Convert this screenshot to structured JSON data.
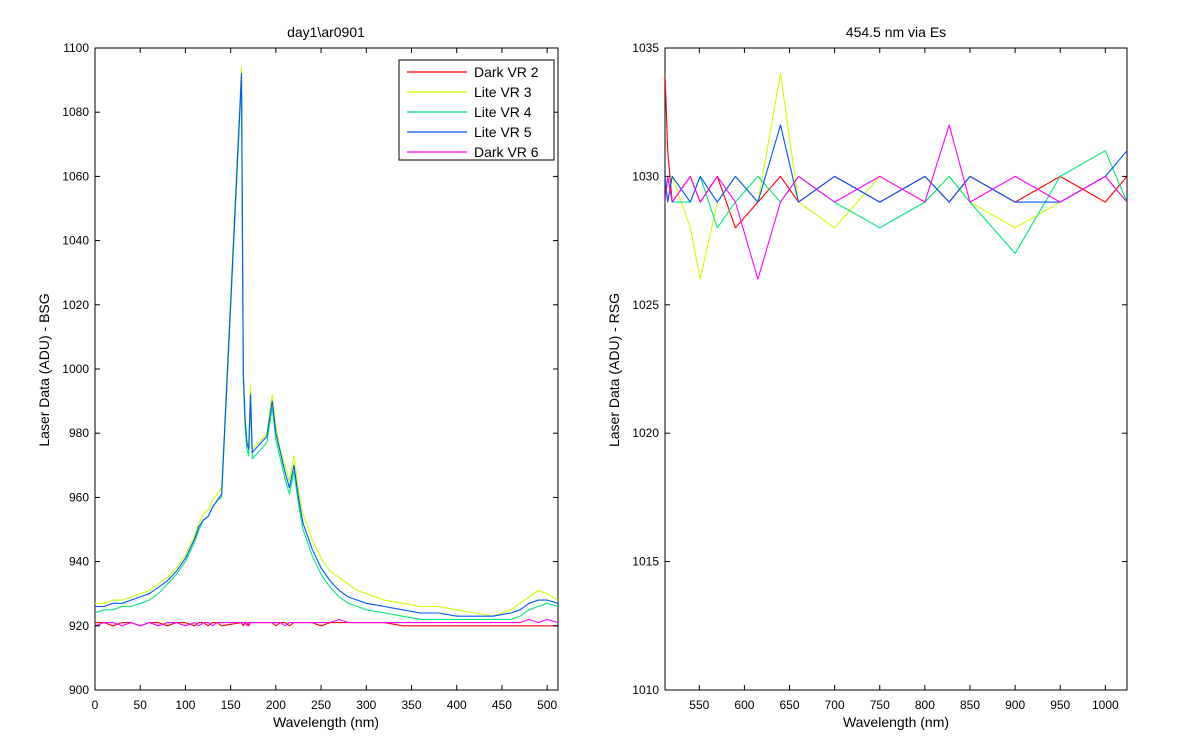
{
  "chart_data": [
    {
      "type": "line",
      "title": "day1\\ar0901",
      "xlabel": "Wavelength (nm)",
      "ylabel": "Laser Data (ADU) - BSG",
      "xlim": [
        0,
        512
      ],
      "ylim": [
        900,
        1100
      ],
      "xticks": [
        0,
        50,
        100,
        150,
        200,
        250,
        300,
        350,
        400,
        450,
        500
      ],
      "yticks": [
        900,
        920,
        940,
        960,
        980,
        1000,
        1020,
        1040,
        1060,
        1080,
        1100
      ],
      "legend_position": "top-right",
      "grid": false,
      "x": [
        0,
        10,
        20,
        30,
        40,
        50,
        60,
        70,
        80,
        90,
        100,
        110,
        115,
        120,
        125,
        130,
        135,
        140,
        162,
        164,
        166,
        168,
        170,
        172,
        174,
        190,
        196,
        200,
        205,
        210,
        215,
        220,
        225,
        230,
        240,
        250,
        260,
        270,
        280,
        290,
        300,
        320,
        340,
        360,
        380,
        400,
        420,
        440,
        460,
        470,
        480,
        490,
        500,
        512
      ],
      "series": [
        {
          "name": "Dark VR 2",
          "color": "#ff0000",
          "values": [
            921,
            921,
            920,
            921,
            921,
            920,
            921,
            921,
            920,
            921,
            921,
            920,
            921,
            921,
            920,
            921,
            921,
            920,
            921,
            920,
            921,
            921,
            920,
            921,
            921,
            921,
            921,
            920,
            921,
            921,
            920,
            921,
            921,
            921,
            921,
            920,
            921,
            921,
            921,
            921,
            921,
            921,
            920,
            920,
            920,
            920,
            920,
            920,
            920,
            920,
            920,
            920,
            920,
            920
          ]
        },
        {
          "name": "Lite VR 3",
          "color": "#ccff00",
          "values": [
            927,
            927,
            928,
            928,
            929,
            930,
            931,
            933,
            935,
            938,
            942,
            948,
            952,
            955,
            956,
            959,
            961,
            963,
            1094,
            1000,
            985,
            978,
            976,
            995,
            975,
            980,
            992,
            982,
            975,
            970,
            965,
            973,
            962,
            955,
            947,
            941,
            937,
            935,
            933,
            931,
            930,
            928,
            927,
            926,
            926,
            925,
            924,
            923,
            925,
            927,
            929,
            931,
            930,
            928
          ]
        },
        {
          "name": "Lite VR 4",
          "color": "#00e87a",
          "values": [
            924,
            925,
            925,
            926,
            926,
            927,
            928,
            930,
            933,
            936,
            940,
            946,
            950,
            953,
            954,
            957,
            959,
            960,
            1090,
            997,
            982,
            975,
            973,
            990,
            972,
            977,
            988,
            978,
            972,
            966,
            961,
            968,
            958,
            950,
            942,
            936,
            932,
            929,
            927,
            926,
            925,
            924,
            923,
            922,
            922,
            922,
            922,
            922,
            922,
            923,
            925,
            926,
            927,
            926
          ]
        },
        {
          "name": "Lite VR 5",
          "color": "#0055ff",
          "values": [
            926,
            926,
            927,
            927,
            928,
            929,
            930,
            932,
            934,
            937,
            941,
            947,
            951,
            953,
            954,
            957,
            959,
            961,
            1092,
            999,
            984,
            977,
            975,
            992,
            974,
            979,
            990,
            980,
            974,
            968,
            963,
            970,
            960,
            952,
            944,
            938,
            934,
            931,
            929,
            928,
            927,
            926,
            925,
            924,
            924,
            923,
            923,
            923,
            924,
            925,
            927,
            928,
            928,
            927
          ]
        },
        {
          "name": "Dark VR 6",
          "color": "#ff00ff",
          "values": [
            920,
            921,
            921,
            920,
            921,
            920,
            921,
            920,
            921,
            921,
            920,
            921,
            920,
            921,
            921,
            920,
            921,
            921,
            921,
            921,
            921,
            920,
            921,
            921,
            921,
            921,
            921,
            921,
            921,
            920,
            921,
            921,
            921,
            921,
            921,
            921,
            921,
            922,
            921,
            921,
            921,
            921,
            921,
            921,
            921,
            921,
            921,
            921,
            921,
            921,
            922,
            921,
            922,
            921
          ]
        }
      ]
    },
    {
      "type": "line",
      "title": "454.5 nm via Es",
      "xlabel": "Wavelength (nm)",
      "ylabel": "Laser Data (ADU) - RSG",
      "xlim": [
        512,
        1024
      ],
      "ylim": [
        1010,
        1035
      ],
      "xticks": [
        550,
        600,
        650,
        700,
        750,
        800,
        850,
        900,
        950,
        1000
      ],
      "yticks": [
        1010,
        1015,
        1020,
        1025,
        1030,
        1035
      ],
      "grid": false,
      "description_band": [
        1028,
        1031
      ],
      "x": [
        512,
        515,
        520,
        540,
        551,
        570,
        590,
        615,
        640,
        660,
        700,
        750,
        800,
        827,
        850,
        900,
        950,
        1000,
        1024
      ],
      "series": [
        {
          "color": "#ff0000",
          "values": [
            1034,
            1031,
            1029,
            1030,
            1029,
            1030,
            1028,
            1029,
            1030,
            1029,
            1030,
            1029,
            1030,
            1029,
            1030,
            1029,
            1030,
            1029,
            1030
          ]
        },
        {
          "color": "#ccff00",
          "values": [
            1030,
            1029,
            1030,
            1028,
            1026,
            1029,
            1030,
            1029,
            1034,
            1029,
            1028,
            1030,
            1029,
            1030,
            1029,
            1028,
            1029,
            1030,
            1029
          ]
        },
        {
          "color": "#00e87a",
          "values": [
            1029,
            1030,
            1029,
            1029,
            1030,
            1028,
            1029,
            1030,
            1029,
            1030,
            1029,
            1028,
            1029,
            1030,
            1029,
            1027,
            1030,
            1031,
            1029
          ]
        },
        {
          "color": "#0055ff",
          "values": [
            1030,
            1029,
            1030,
            1029,
            1030,
            1029,
            1030,
            1029,
            1032,
            1029,
            1030,
            1029,
            1030,
            1029,
            1030,
            1029,
            1029,
            1030,
            1031
          ]
        },
        {
          "color": "#ff00ff",
          "values": [
            1029,
            1030,
            1029,
            1030,
            1029,
            1030,
            1029,
            1026,
            1029,
            1030,
            1029,
            1030,
            1029,
            1032,
            1029,
            1030,
            1029,
            1030,
            1029
          ]
        }
      ]
    }
  ]
}
